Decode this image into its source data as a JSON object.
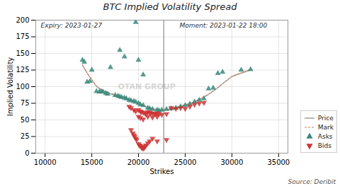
{
  "chart_data": {
    "type": "scatter",
    "title": "BTC Implied Volatility Spread",
    "x_label": "Strikes",
    "y_label": "Implied Volatility",
    "annotations": [
      "Expiry: 2023-01-27",
      "Moment: 2023-01-22 18:00",
      "OTAN GROUP",
      "Source: Deribit"
    ],
    "xlim": [
      9000,
      36000
    ],
    "ylim": [
      0,
      200
    ],
    "xticks": [
      10000,
      15000,
      20000,
      25000,
      30000,
      35000
    ],
    "yticks": [
      0,
      25,
      50,
      75,
      100,
      125,
      150,
      175,
      200
    ],
    "vlines": [
      22700
    ],
    "grid": true,
    "legend": "lower right",
    "series": [
      {
        "name": "Price",
        "type": "line",
        "line_style": "solid",
        "color": "#888888",
        "x": [
          14000,
          14500,
          15000,
          15500,
          16000,
          16500,
          17000,
          17500,
          18000,
          18500,
          19000,
          19500,
          20000,
          20500,
          21000,
          21500,
          22000,
          22500,
          23000,
          23500,
          24000,
          24500,
          25000,
          25500,
          26000,
          26500,
          27000,
          27500,
          28000,
          28500,
          29000,
          30000,
          31000,
          32000
        ],
        "values": [
          132,
          120,
          110,
          100,
          95,
          92,
          89,
          87,
          85,
          83,
          80,
          78,
          74,
          71,
          68,
          66,
          65,
          64,
          65,
          66,
          68,
          70,
          72,
          74,
          77,
          80,
          84,
          88,
          93,
          98,
          104,
          115,
          120,
          125
        ]
      },
      {
        "name": "Mark",
        "type": "line",
        "line_style": "dashed",
        "color": "#cc7755",
        "x": [
          14000,
          14500,
          15000,
          15500,
          16000,
          16500,
          17000,
          17500,
          18000,
          18500,
          19000,
          19500,
          20000,
          20500,
          21000,
          21500,
          22000,
          22500,
          23000,
          23500,
          24000,
          24500,
          25000,
          25500,
          26000,
          26500,
          27000,
          27500,
          28000,
          28500,
          29000,
          30000,
          31000,
          32000
        ],
        "values": [
          133,
          121,
          111,
          101,
          96,
          93,
          90,
          88,
          86,
          84,
          81,
          79,
          75,
          72,
          69,
          67,
          66,
          65,
          66,
          67,
          69,
          71,
          73,
          75,
          78,
          81,
          85,
          89,
          94,
          99,
          105,
          116,
          121,
          126
        ]
      },
      {
        "name": "Asks",
        "type": "scatter",
        "marker": "triangle-up",
        "color": "#3a8a7a",
        "x": [
          14000,
          14200,
          14500,
          14800,
          15000,
          15500,
          15800,
          16000,
          16200,
          16500,
          16700,
          17000,
          17500,
          17800,
          18000,
          18200,
          18500,
          18700,
          19000,
          19200,
          19500,
          19700,
          20000,
          20200,
          20500,
          21000,
          21200,
          21500,
          22000,
          22200,
          22500,
          23000,
          23500,
          24000,
          24500,
          25000,
          25500,
          26000,
          26500,
          27000,
          27500,
          28000,
          28500,
          29000,
          31000,
          32000,
          18000,
          19700,
          20000,
          20500,
          18500
        ],
        "values": [
          140,
          137,
          107,
          108,
          125,
          93,
          92,
          93,
          92,
          90,
          89,
          129,
          87,
          86,
          85,
          84,
          83,
          82,
          80,
          79,
          78,
          77,
          75,
          73,
          72,
          68,
          67,
          66,
          65,
          64,
          65,
          66,
          67,
          68,
          70,
          72,
          74,
          77,
          80,
          82,
          97,
          98,
          120,
          122,
          125,
          126,
          155,
          197,
          140,
          118,
          145
        ]
      },
      {
        "name": "Bids",
        "type": "scatter",
        "marker": "triangle-down",
        "color": "#cc3333",
        "x": [
          19500,
          19700,
          20000,
          20200,
          20300,
          20500,
          20700,
          20800,
          21000,
          21200,
          21300,
          21500,
          21700,
          21800,
          22000,
          22200,
          22500,
          23000,
          23500,
          24000,
          24500,
          25000,
          25500,
          26000,
          26500,
          27000,
          19000,
          19200,
          20000,
          20200,
          20500,
          21000,
          21500,
          22000,
          19200,
          19400,
          19500,
          19600,
          19700,
          19800,
          20000,
          20100,
          20200,
          20300,
          20400,
          20500,
          20600,
          20700,
          20800,
          21000,
          21200,
          21500,
          22000,
          23000
        ],
        "values": [
          65,
          63,
          65,
          63,
          62,
          61,
          60,
          59,
          62,
          61,
          60,
          60,
          59,
          59,
          60,
          59,
          58,
          59,
          68,
          67,
          68,
          67,
          70,
          73,
          75,
          76,
          70,
          68,
          55,
          53,
          51,
          55,
          54,
          55,
          35,
          30,
          27,
          25,
          22,
          20,
          14,
          12,
          11,
          9,
          8,
          7,
          8,
          10,
          12,
          15,
          18,
          22,
          18,
          20
        ]
      }
    ]
  }
}
